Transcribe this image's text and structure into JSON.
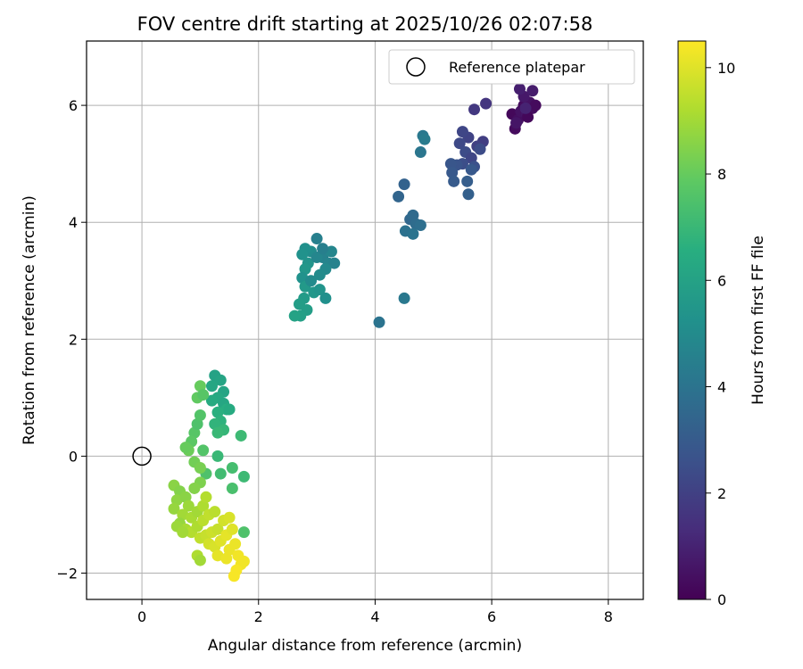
{
  "chart_data": {
    "type": "scatter",
    "title": "FOV centre drift starting at 2025/10/26 02:07:58",
    "xlabel": "Angular distance from reference (arcmin)",
    "ylabel": "Rotation from reference (arcmin)",
    "xlim": [
      -0.95,
      8.6
    ],
    "ylim": [
      -2.45,
      7.1
    ],
    "xticks": [
      0,
      2,
      4,
      6,
      8
    ],
    "yticks": [
      -2,
      0,
      2,
      4,
      6
    ],
    "xtick_labels": [
      "0",
      "2",
      "4",
      "6",
      "8"
    ],
    "ytick_labels": [
      "−2",
      "0",
      "2",
      "4",
      "6"
    ],
    "grid": true,
    "legend": {
      "label": "Reference platepar",
      "placement": "upper right"
    },
    "reference_point": {
      "x": 0,
      "y": 0
    },
    "colorbar": {
      "label": "Hours from first FF file",
      "range": [
        0,
        10.5
      ],
      "ticks": [
        0,
        2,
        4,
        6,
        8,
        10
      ],
      "tick_labels": [
        "0",
        "2",
        "4",
        "6",
        "8",
        "10"
      ],
      "colormap": "viridis"
    },
    "points": [
      {
        "x": 6.35,
        "y": 5.85,
        "h": 0.2
      },
      {
        "x": 6.4,
        "y": 5.6,
        "h": 0.3
      },
      {
        "x": 6.45,
        "y": 5.75,
        "h": 0.4
      },
      {
        "x": 6.5,
        "y": 5.9,
        "h": 0.5
      },
      {
        "x": 6.55,
        "y": 6.0,
        "h": 0.3
      },
      {
        "x": 6.6,
        "y": 5.85,
        "h": 0.6
      },
      {
        "x": 6.65,
        "y": 6.05,
        "h": 0.5
      },
      {
        "x": 6.7,
        "y": 5.95,
        "h": 0.4
      },
      {
        "x": 6.55,
        "y": 6.15,
        "h": 0.7
      },
      {
        "x": 6.48,
        "y": 6.28,
        "h": 0.9
      },
      {
        "x": 6.7,
        "y": 6.25,
        "h": 0.8
      },
      {
        "x": 6.62,
        "y": 5.8,
        "h": 0.2
      },
      {
        "x": 6.42,
        "y": 5.7,
        "h": 0.6
      },
      {
        "x": 6.75,
        "y": 6.0,
        "h": 0.3
      },
      {
        "x": 6.58,
        "y": 5.95,
        "h": 1.0
      },
      {
        "x": 5.9,
        "y": 6.03,
        "h": 1.6
      },
      {
        "x": 5.7,
        "y": 5.93,
        "h": 1.7
      },
      {
        "x": 5.85,
        "y": 5.38,
        "h": 1.9
      },
      {
        "x": 5.75,
        "y": 5.3,
        "h": 2.0
      },
      {
        "x": 5.6,
        "y": 5.45,
        "h": 2.1
      },
      {
        "x": 5.5,
        "y": 5.55,
        "h": 2.2
      },
      {
        "x": 5.45,
        "y": 5.35,
        "h": 2.3
      },
      {
        "x": 5.55,
        "y": 5.2,
        "h": 2.4
      },
      {
        "x": 5.65,
        "y": 5.1,
        "h": 2.2
      },
      {
        "x": 5.7,
        "y": 4.95,
        "h": 2.6
      },
      {
        "x": 5.5,
        "y": 5.0,
        "h": 2.5
      },
      {
        "x": 5.4,
        "y": 4.98,
        "h": 2.7
      },
      {
        "x": 5.3,
        "y": 5.0,
        "h": 2.8
      },
      {
        "x": 5.32,
        "y": 4.85,
        "h": 2.9
      },
      {
        "x": 5.35,
        "y": 4.7,
        "h": 3.0
      },
      {
        "x": 5.58,
        "y": 4.7,
        "h": 3.1
      },
      {
        "x": 5.6,
        "y": 4.48,
        "h": 3.2
      },
      {
        "x": 5.65,
        "y": 4.9,
        "h": 2.9
      },
      {
        "x": 5.8,
        "y": 5.25,
        "h": 2.4
      },
      {
        "x": 4.5,
        "y": 4.65,
        "h": 3.3
      },
      {
        "x": 4.4,
        "y": 4.44,
        "h": 3.4
      },
      {
        "x": 4.6,
        "y": 4.05,
        "h": 3.5
      },
      {
        "x": 4.65,
        "y": 4.12,
        "h": 3.6
      },
      {
        "x": 4.7,
        "y": 3.97,
        "h": 3.7
      },
      {
        "x": 4.78,
        "y": 3.95,
        "h": 3.8
      },
      {
        "x": 4.52,
        "y": 3.85,
        "h": 3.9
      },
      {
        "x": 4.65,
        "y": 3.8,
        "h": 4.0
      },
      {
        "x": 4.78,
        "y": 5.2,
        "h": 4.1
      },
      {
        "x": 4.82,
        "y": 5.48,
        "h": 4.2
      },
      {
        "x": 4.85,
        "y": 5.42,
        "h": 4.3
      },
      {
        "x": 4.5,
        "y": 2.7,
        "h": 4.2
      },
      {
        "x": 4.07,
        "y": 2.29,
        "h": 4.0
      },
      {
        "x": 3.0,
        "y": 3.72,
        "h": 4.5
      },
      {
        "x": 3.1,
        "y": 3.4,
        "h": 4.6
      },
      {
        "x": 3.2,
        "y": 3.3,
        "h": 4.7
      },
      {
        "x": 3.25,
        "y": 3.5,
        "h": 4.8
      },
      {
        "x": 3.3,
        "y": 3.3,
        "h": 4.6
      },
      {
        "x": 3.15,
        "y": 3.2,
        "h": 4.9
      },
      {
        "x": 3.05,
        "y": 3.1,
        "h": 5.0
      },
      {
        "x": 2.9,
        "y": 3.5,
        "h": 5.1
      },
      {
        "x": 2.8,
        "y": 3.55,
        "h": 5.2
      },
      {
        "x": 2.75,
        "y": 3.45,
        "h": 5.3
      },
      {
        "x": 2.85,
        "y": 3.3,
        "h": 5.4
      },
      {
        "x": 2.8,
        "y": 3.2,
        "h": 5.5
      },
      {
        "x": 2.75,
        "y": 3.05,
        "h": 5.3
      },
      {
        "x": 2.8,
        "y": 2.9,
        "h": 5.6
      },
      {
        "x": 2.95,
        "y": 2.8,
        "h": 5.5
      },
      {
        "x": 3.05,
        "y": 2.85,
        "h": 5.4
      },
      {
        "x": 3.15,
        "y": 2.7,
        "h": 5.2
      },
      {
        "x": 2.78,
        "y": 2.7,
        "h": 5.7
      },
      {
        "x": 2.83,
        "y": 2.5,
        "h": 5.8
      },
      {
        "x": 2.72,
        "y": 2.4,
        "h": 5.9
      },
      {
        "x": 2.62,
        "y": 2.4,
        "h": 6.0
      },
      {
        "x": 2.7,
        "y": 2.6,
        "h": 5.8
      },
      {
        "x": 2.9,
        "y": 3.0,
        "h": 5.0
      },
      {
        "x": 3.0,
        "y": 3.4,
        "h": 4.8
      },
      {
        "x": 3.1,
        "y": 3.55,
        "h": 4.5
      },
      {
        "x": 1.25,
        "y": 1.38,
        "h": 6.0
      },
      {
        "x": 1.35,
        "y": 1.3,
        "h": 6.1
      },
      {
        "x": 1.2,
        "y": 1.2,
        "h": 6.2
      },
      {
        "x": 1.4,
        "y": 1.1,
        "h": 6.1
      },
      {
        "x": 1.3,
        "y": 1.0,
        "h": 6.3
      },
      {
        "x": 1.2,
        "y": 0.95,
        "h": 6.4
      },
      {
        "x": 1.4,
        "y": 0.9,
        "h": 6.2
      },
      {
        "x": 1.45,
        "y": 0.8,
        "h": 6.5
      },
      {
        "x": 1.3,
        "y": 0.75,
        "h": 6.6
      },
      {
        "x": 1.35,
        "y": 0.6,
        "h": 6.7
      },
      {
        "x": 1.5,
        "y": 0.8,
        "h": 6.4
      },
      {
        "x": 1.25,
        "y": 0.55,
        "h": 6.8
      },
      {
        "x": 1.4,
        "y": 0.45,
        "h": 6.9
      },
      {
        "x": 1.3,
        "y": 0.4,
        "h": 7.0
      },
      {
        "x": 1.7,
        "y": 0.35,
        "h": 7.1
      },
      {
        "x": 1.35,
        "y": -0.3,
        "h": 7.2
      },
      {
        "x": 1.55,
        "y": -0.2,
        "h": 7.3
      },
      {
        "x": 1.75,
        "y": -0.35,
        "h": 7.1
      },
      {
        "x": 1.3,
        "y": 0.0,
        "h": 7.0
      },
      {
        "x": 1.55,
        "y": -0.55,
        "h": 7.4
      },
      {
        "x": 1.1,
        "y": -0.3,
        "h": 7.5
      },
      {
        "x": 1.05,
        "y": 0.1,
        "h": 7.6
      },
      {
        "x": 0.9,
        "y": 0.4,
        "h": 7.7
      },
      {
        "x": 0.85,
        "y": 0.25,
        "h": 7.8
      },
      {
        "x": 0.95,
        "y": 0.55,
        "h": 7.5
      },
      {
        "x": 1.0,
        "y": 0.7,
        "h": 7.6
      },
      {
        "x": 0.95,
        "y": 1.0,
        "h": 7.9
      },
      {
        "x": 1.0,
        "y": 1.2,
        "h": 8.0
      },
      {
        "x": 1.05,
        "y": 1.05,
        "h": 7.7
      },
      {
        "x": 0.8,
        "y": 0.1,
        "h": 8.1
      },
      {
        "x": 0.9,
        "y": -0.1,
        "h": 8.2
      },
      {
        "x": 0.75,
        "y": 0.15,
        "h": 8.0
      },
      {
        "x": 1.0,
        "y": -0.2,
        "h": 8.3
      },
      {
        "x": 1.0,
        "y": -0.45,
        "h": 8.4
      },
      {
        "x": 0.9,
        "y": -0.55,
        "h": 8.5
      },
      {
        "x": 0.55,
        "y": -0.5,
        "h": 8.6
      },
      {
        "x": 0.65,
        "y": -0.6,
        "h": 8.5
      },
      {
        "x": 0.6,
        "y": -0.75,
        "h": 8.7
      },
      {
        "x": 0.55,
        "y": -0.9,
        "h": 8.8
      },
      {
        "x": 0.75,
        "y": -0.7,
        "h": 8.6
      },
      {
        "x": 0.8,
        "y": -0.85,
        "h": 8.9
      },
      {
        "x": 0.7,
        "y": -1.0,
        "h": 9.0
      },
      {
        "x": 0.65,
        "y": -1.15,
        "h": 8.8
      },
      {
        "x": 0.85,
        "y": -1.05,
        "h": 9.1
      },
      {
        "x": 0.95,
        "y": -0.95,
        "h": 9.0
      },
      {
        "x": 1.05,
        "y": -0.85,
        "h": 9.2
      },
      {
        "x": 1.1,
        "y": -0.7,
        "h": 9.3
      },
      {
        "x": 0.75,
        "y": -1.25,
        "h": 9.1
      },
      {
        "x": 0.85,
        "y": -1.3,
        "h": 9.3
      },
      {
        "x": 0.95,
        "y": -1.2,
        "h": 9.2
      },
      {
        "x": 1.05,
        "y": -1.1,
        "h": 9.4
      },
      {
        "x": 1.15,
        "y": -1.0,
        "h": 9.5
      },
      {
        "x": 1.25,
        "y": -0.95,
        "h": 9.4
      },
      {
        "x": 1.0,
        "y": -1.4,
        "h": 9.5
      },
      {
        "x": 1.1,
        "y": -1.35,
        "h": 9.6
      },
      {
        "x": 1.2,
        "y": -1.3,
        "h": 9.7
      },
      {
        "x": 1.3,
        "y": -1.25,
        "h": 9.6
      },
      {
        "x": 1.4,
        "y": -1.1,
        "h": 9.8
      },
      {
        "x": 1.5,
        "y": -1.05,
        "h": 9.9
      },
      {
        "x": 1.15,
        "y": -1.5,
        "h": 9.8
      },
      {
        "x": 1.25,
        "y": -1.55,
        "h": 9.9
      },
      {
        "x": 1.35,
        "y": -1.45,
        "h": 10.0
      },
      {
        "x": 1.45,
        "y": -1.35,
        "h": 10.1
      },
      {
        "x": 1.55,
        "y": -1.25,
        "h": 10.0
      },
      {
        "x": 1.3,
        "y": -1.7,
        "h": 10.1
      },
      {
        "x": 1.5,
        "y": -1.6,
        "h": 10.2
      },
      {
        "x": 1.6,
        "y": -1.5,
        "h": 10.2
      },
      {
        "x": 1.65,
        "y": -1.7,
        "h": 10.3
      },
      {
        "x": 1.7,
        "y": -1.85,
        "h": 10.3
      },
      {
        "x": 1.62,
        "y": -1.95,
        "h": 10.4
      },
      {
        "x": 1.58,
        "y": -2.05,
        "h": 10.4
      },
      {
        "x": 1.75,
        "y": -1.8,
        "h": 10.3
      },
      {
        "x": 1.45,
        "y": -1.75,
        "h": 10.2
      },
      {
        "x": 0.95,
        "y": -1.7,
        "h": 9.2
      },
      {
        "x": 1.0,
        "y": -1.78,
        "h": 9.0
      },
      {
        "x": 1.75,
        "y": -1.3,
        "h": 7.5
      },
      {
        "x": 0.6,
        "y": -1.2,
        "h": 8.9
      },
      {
        "x": 0.7,
        "y": -1.3,
        "h": 9.0
      }
    ]
  }
}
